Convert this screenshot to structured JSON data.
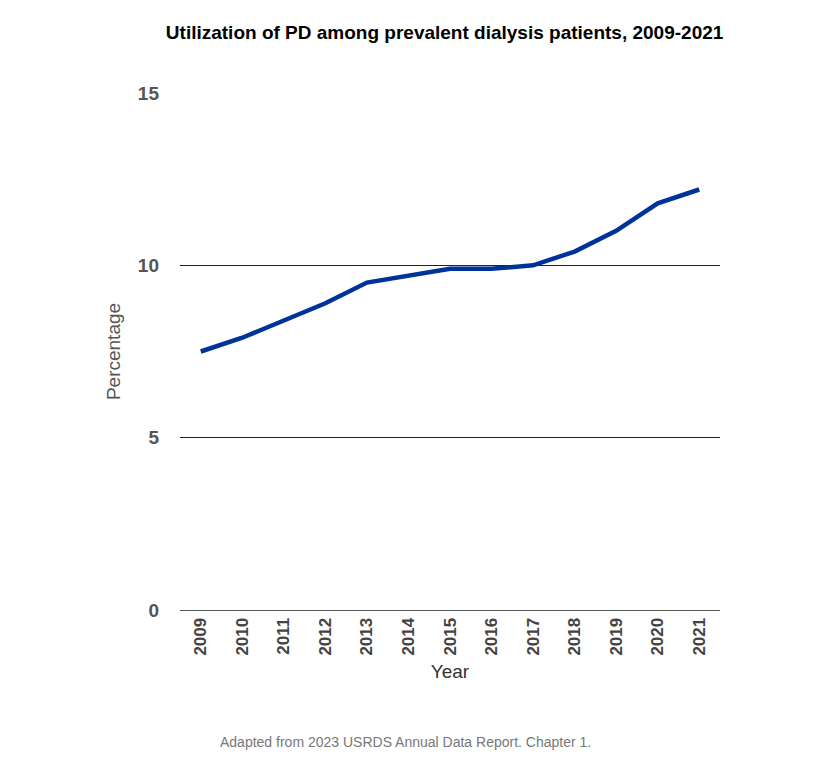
{
  "chart_data": {
    "type": "line",
    "title": "Utilization of PD among prevalent dialysis patients, 2009-2021",
    "x_label": "Year",
    "y_label": "Percentage",
    "categories": [
      "2009",
      "2010",
      "2011",
      "2012",
      "2013",
      "2014",
      "2015",
      "2016",
      "2017",
      "2018",
      "2019",
      "2020",
      "2021"
    ],
    "values": [
      7.5,
      7.9,
      8.4,
      8.9,
      9.5,
      9.7,
      9.9,
      9.9,
      10.0,
      10.4,
      11.0,
      11.8,
      12.2
    ],
    "color": "#003399",
    "ylim": [
      0,
      15
    ],
    "yticks": [
      0,
      5,
      10,
      15
    ],
    "grid": true,
    "annotations": [
      "Adapted from 2023 USRDS Annual Data Report. Chapter 1."
    ]
  }
}
